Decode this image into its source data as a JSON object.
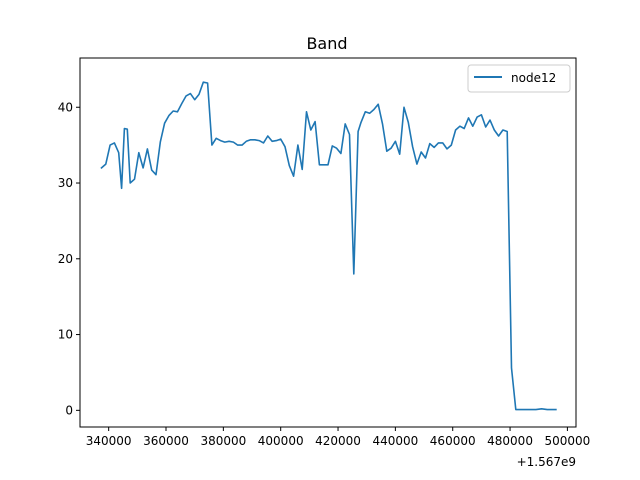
{
  "chart_data": {
    "type": "line",
    "title": "Band",
    "xlabel": "",
    "ylabel": "",
    "x_offset_label": "+1.567e9",
    "xlim": [
      330000,
      503000
    ],
    "ylim": [
      -2.2,
      46.5
    ],
    "xticks": [
      {
        "value": 340000,
        "label": "340000"
      },
      {
        "value": 360000,
        "label": "360000"
      },
      {
        "value": 380000,
        "label": "380000"
      },
      {
        "value": 400000,
        "label": "400000"
      },
      {
        "value": 420000,
        "label": "420000"
      },
      {
        "value": 440000,
        "label": "440000"
      },
      {
        "value": 460000,
        "label": "460000"
      },
      {
        "value": 480000,
        "label": "480000"
      },
      {
        "value": 500000,
        "label": "500000"
      }
    ],
    "yticks": [
      {
        "value": 0,
        "label": "0"
      },
      {
        "value": 10,
        "label": "10"
      },
      {
        "value": 20,
        "label": "20"
      },
      {
        "value": 30,
        "label": "30"
      },
      {
        "value": 40,
        "label": "40"
      }
    ],
    "grid": false,
    "legend": {
      "position": "top-right"
    },
    "series": [
      {
        "name": "node12",
        "color": "#1f77b4",
        "x": [
          337500,
          339000,
          340500,
          342000,
          343500,
          344500,
          345500,
          346500,
          347500,
          349000,
          350500,
          352000,
          353500,
          355000,
          356500,
          358000,
          359500,
          361000,
          362500,
          364000,
          365500,
          367000,
          368500,
          370000,
          371500,
          373000,
          374500,
          376000,
          377500,
          379000,
          380500,
          382000,
          383500,
          385000,
          386500,
          388000,
          389500,
          391000,
          392500,
          394000,
          395500,
          397000,
          398500,
          400000,
          401500,
          403000,
          404500,
          406000,
          407500,
          409000,
          410500,
          412000,
          413500,
          415000,
          416500,
          418000,
          419500,
          421000,
          422500,
          424000,
          425500,
          427000,
          428000,
          429500,
          431000,
          432500,
          434000,
          435500,
          437000,
          438500,
          440000,
          441500,
          443000,
          444500,
          446000,
          447500,
          449000,
          450500,
          452000,
          453500,
          455000,
          456500,
          458000,
          459500,
          461000,
          462500,
          464000,
          465500,
          467000,
          468500,
          470000,
          471500,
          473000,
          474500,
          476000,
          477500,
          479000,
          480500,
          482000,
          483500,
          485000,
          487000,
          489000,
          491000,
          493000,
          495000,
          496000
        ],
        "y": [
          32.0,
          32.5,
          35.0,
          35.3,
          34.0,
          29.3,
          37.2,
          37.1,
          30.0,
          30.5,
          34.0,
          32.0,
          34.5,
          31.7,
          31.1,
          35.4,
          37.9,
          38.9,
          39.5,
          39.4,
          40.5,
          41.5,
          41.8,
          41.0,
          41.7,
          43.3,
          43.2,
          35.0,
          35.9,
          35.6,
          35.4,
          35.5,
          35.4,
          35.0,
          35.0,
          35.5,
          35.7,
          35.7,
          35.6,
          35.3,
          36.2,
          35.5,
          35.6,
          35.8,
          34.8,
          32.3,
          30.9,
          35.0,
          31.8,
          39.4,
          37.0,
          38.1,
          32.4,
          32.4,
          32.4,
          34.9,
          34.6,
          33.9,
          37.8,
          36.4,
          18.0,
          36.8,
          38.0,
          39.4,
          39.2,
          39.7,
          40.4,
          37.8,
          34.2,
          34.6,
          35.5,
          33.8,
          40.0,
          38.0,
          34.8,
          32.5,
          34.1,
          33.3,
          35.2,
          34.7,
          35.3,
          35.3,
          34.5,
          35.0,
          37.0,
          37.5,
          37.2,
          38.6,
          37.5,
          38.7,
          39.0,
          37.4,
          38.3,
          37.0,
          36.2,
          37.0,
          36.8,
          5.6,
          0.1,
          0.1,
          0.1,
          0.1,
          0.1,
          0.2,
          0.1,
          0.1,
          0.1
        ]
      }
    ]
  }
}
